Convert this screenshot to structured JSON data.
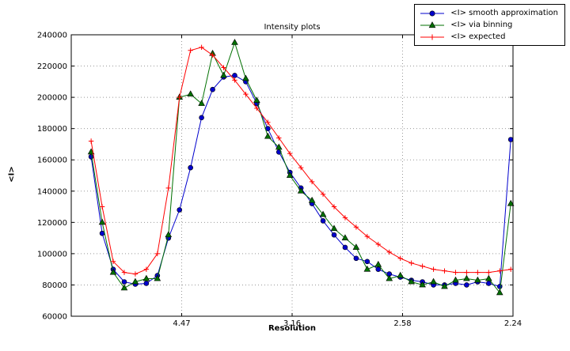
{
  "chart_data": {
    "type": "line",
    "title": "Intensity plots",
    "xlabel": "Resolution",
    "ylabel": "<I>",
    "xlim": [
      0,
      0.2
    ],
    "ylim": [
      60000,
      240000
    ],
    "grid": true,
    "legend_position": "top-right",
    "grid_color": "#999999",
    "xticks": [
      {
        "pos": 0.05,
        "label": "4.47"
      },
      {
        "pos": 0.1,
        "label": "3.16"
      },
      {
        "pos": 0.15,
        "label": "2.58"
      },
      {
        "pos": 0.2,
        "label": "2.24"
      }
    ],
    "yticks": [
      60000,
      80000,
      100000,
      120000,
      140000,
      160000,
      180000,
      200000,
      220000,
      240000
    ],
    "x": [
      0.009,
      0.014,
      0.019,
      0.024,
      0.029,
      0.034,
      0.039,
      0.044,
      0.049,
      0.054,
      0.059,
      0.064,
      0.069,
      0.074,
      0.079,
      0.084,
      0.089,
      0.094,
      0.099,
      0.104,
      0.109,
      0.114,
      0.119,
      0.124,
      0.129,
      0.134,
      0.139,
      0.144,
      0.149,
      0.154,
      0.159,
      0.164,
      0.169,
      0.174,
      0.179,
      0.184,
      0.189,
      0.194,
      0.199
    ],
    "series": [
      {
        "name": "<I> smooth approximation",
        "color": "#0000cd",
        "marker": "circle",
        "values": [
          162000,
          113000,
          90000,
          82000,
          80500,
          81000,
          86000,
          110000,
          128000,
          155000,
          187000,
          205000,
          213000,
          214000,
          210000,
          196000,
          180000,
          165000,
          152000,
          142000,
          132000,
          121000,
          112000,
          104000,
          97000,
          95000,
          90000,
          87000,
          85000,
          83000,
          82000,
          80000,
          80000,
          81000,
          80000,
          82000,
          81000,
          79000,
          173000
        ]
      },
      {
        "name": "<I> via binning",
        "color": "#007000",
        "marker": "triangle",
        "values": [
          165000,
          120000,
          88000,
          78000,
          82000,
          84000,
          84000,
          112000,
          200000,
          202000,
          196000,
          228000,
          214000,
          235000,
          212000,
          198000,
          175000,
          168000,
          150000,
          140000,
          134000,
          125000,
          116000,
          110000,
          104000,
          90000,
          93000,
          84000,
          86000,
          82000,
          80000,
          82000,
          79000,
          83000,
          84000,
          83000,
          84000,
          75000,
          132000
        ]
      },
      {
        "name": "<I> expected",
        "color": "#ff0000",
        "marker": "plus",
        "values": [
          172000,
          130000,
          95000,
          88000,
          87000,
          90000,
          100000,
          142000,
          200000,
          230000,
          232000,
          227000,
          219000,
          211000,
          202000,
          193000,
          184000,
          174000,
          164000,
          155000,
          146000,
          138000,
          130000,
          123000,
          117000,
          111000,
          106000,
          101000,
          97000,
          94000,
          92000,
          90000,
          89000,
          88000,
          88000,
          88000,
          88000,
          89000,
          90000
        ]
      }
    ]
  }
}
